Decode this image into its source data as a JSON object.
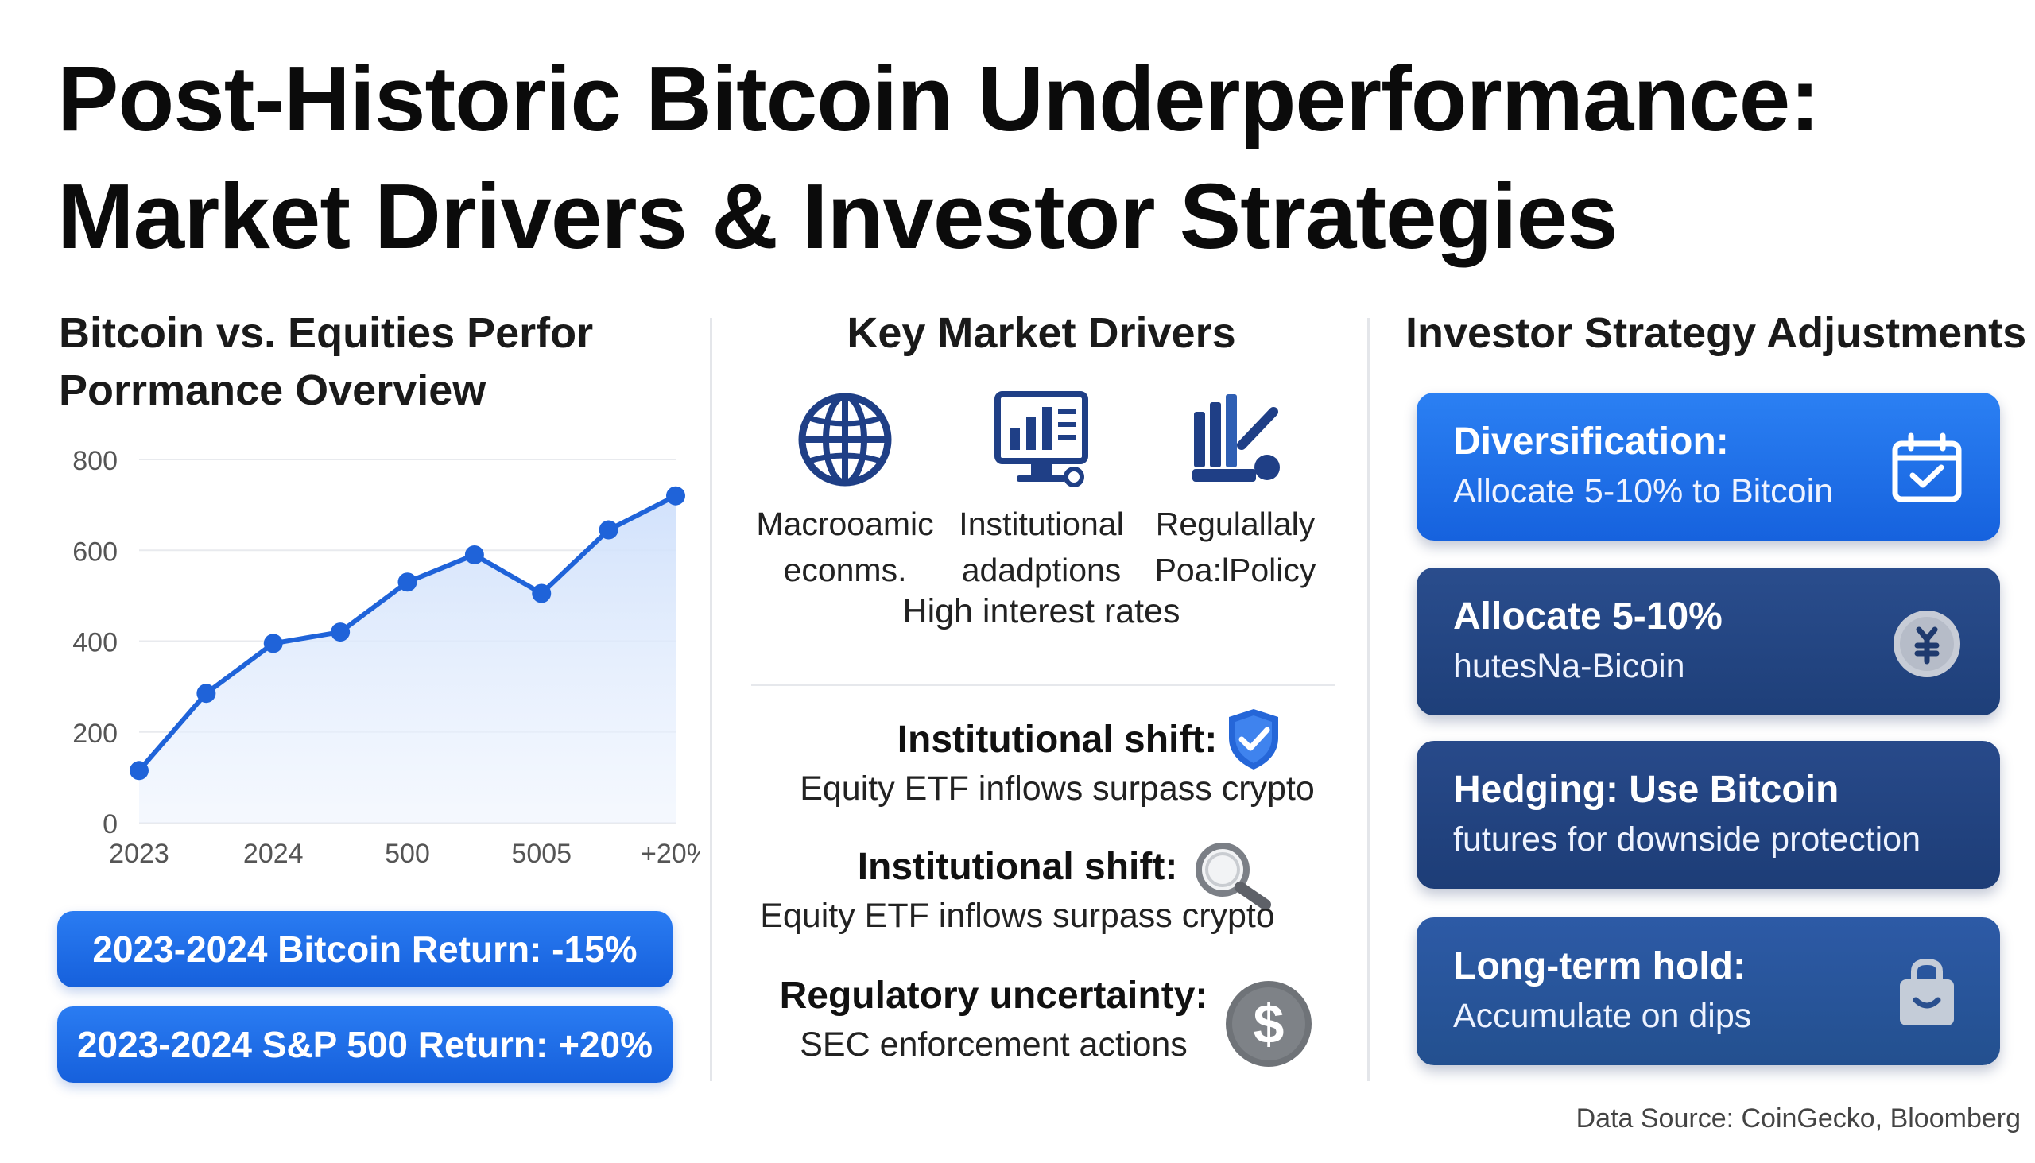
{
  "header": {
    "title_line1": "Post-Historic Bitcoin Underperformance:",
    "title_line2": "Market Drivers & Investor Strategies"
  },
  "left": {
    "title_line1": "Bitcoin vs. Equities Perfor",
    "title_line2": "Porrmance Overview",
    "stats": [
      "2023-2024 Bitcoin Return: -15%",
      "2023-2024 S&P 500 Return: +20%"
    ]
  },
  "chart_data": {
    "type": "area",
    "title": "",
    "xlabel": "",
    "ylabel": "",
    "ylim": [
      0,
      800
    ],
    "yticks": [
      0,
      200,
      400,
      600,
      800
    ],
    "xtick_labels": [
      "2023",
      "2024",
      "500",
      "5005",
      "+20%"
    ],
    "grid": true,
    "legend": "none",
    "series": [
      {
        "x": [
          0,
          0.5,
          1,
          1.5,
          2,
          2.5,
          3,
          3.5,
          4
        ],
        "values": [
          115,
          285,
          395,
          420,
          530,
          590,
          505,
          645,
          720
        ]
      }
    ],
    "colors": {
      "line": "#1f63d9",
      "fill": "#cfe0fb"
    }
  },
  "middle": {
    "title": "Key Market Drivers",
    "drivers": [
      {
        "icon": "globe-icon",
        "line1": "Macrooamic",
        "line2": "econms."
      },
      {
        "icon": "chart-monitor-icon",
        "line1": "Institutional",
        "line2": "adadptions"
      },
      {
        "icon": "gavel-icon",
        "line1": "Regulallaly",
        "line2": "Poa:lPolicy"
      }
    ],
    "driver_sub": "High interest rates",
    "shifts": [
      {
        "icon": "shield-check-icon",
        "heading": "Institutional shift:",
        "text": "Equity ETF inflows surpass crypto"
      },
      {
        "icon": "magnifier-icon",
        "heading": "Institutional shift:",
        "text": "Equity ETF inflows surpass crypto"
      },
      {
        "icon": "dollar-coin-icon",
        "heading": "Regulatory uncertainty:",
        "text": "SEC enforcement actions"
      }
    ]
  },
  "right": {
    "title": "Investor Strategy Adjustments",
    "cards": [
      {
        "icon": "calendar-check-icon",
        "line1": "Diversification:",
        "line2": "Allocate 5-10% to Bitcoin"
      },
      {
        "icon": "coin-icon",
        "line1": "Allocate 5-10%",
        "line2": "hutesNa-Bicoin"
      },
      {
        "icon": "",
        "line1": "Hedging: Use Bitcoin",
        "line2": "futures for downside protection"
      },
      {
        "icon": "bag-icon",
        "line1": "Long-term hold:",
        "line2": "Accumulate on dips"
      }
    ]
  },
  "footer": {
    "source": "Data Source: CoinGecko, Bloomberg"
  }
}
